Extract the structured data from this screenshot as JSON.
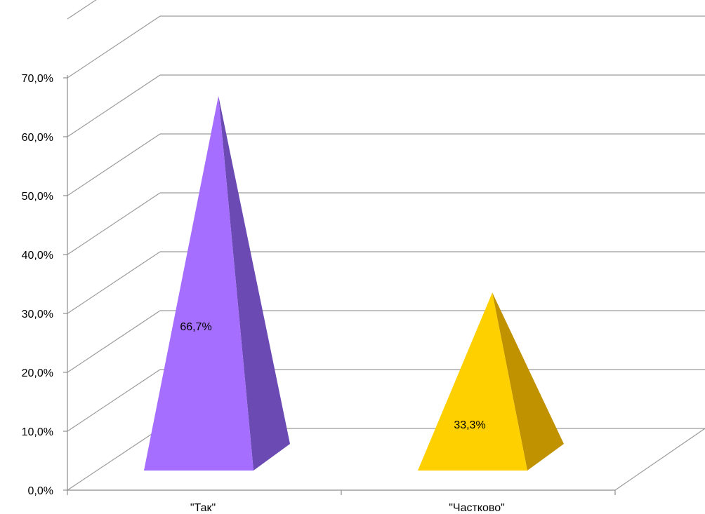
{
  "chart_data": {
    "type": "bar",
    "shape": "3d-pyramid",
    "categories": [
      "\"Так\"",
      "\"Частково\""
    ],
    "values": [
      66.7,
      33.3
    ],
    "data_labels": [
      "66,7%",
      "33,3%"
    ],
    "ylim": [
      0,
      70
    ],
    "yticks": [
      0,
      10,
      20,
      30,
      40,
      50,
      60,
      70
    ],
    "ytick_labels": [
      "0,0%",
      "10,0%",
      "20,0%",
      "30,0%",
      "40,0%",
      "50,0%",
      "60,0%",
      "70,0%"
    ],
    "grid": true,
    "legend": "none",
    "colors": {
      "series": [
        {
          "front": "#A66EFF",
          "side": "#6B4BB3"
        },
        {
          "front": "#FFD000",
          "side": "#C19200"
        }
      ],
      "grid": "#9a9a9a",
      "axis": "#8c8c8c"
    }
  }
}
